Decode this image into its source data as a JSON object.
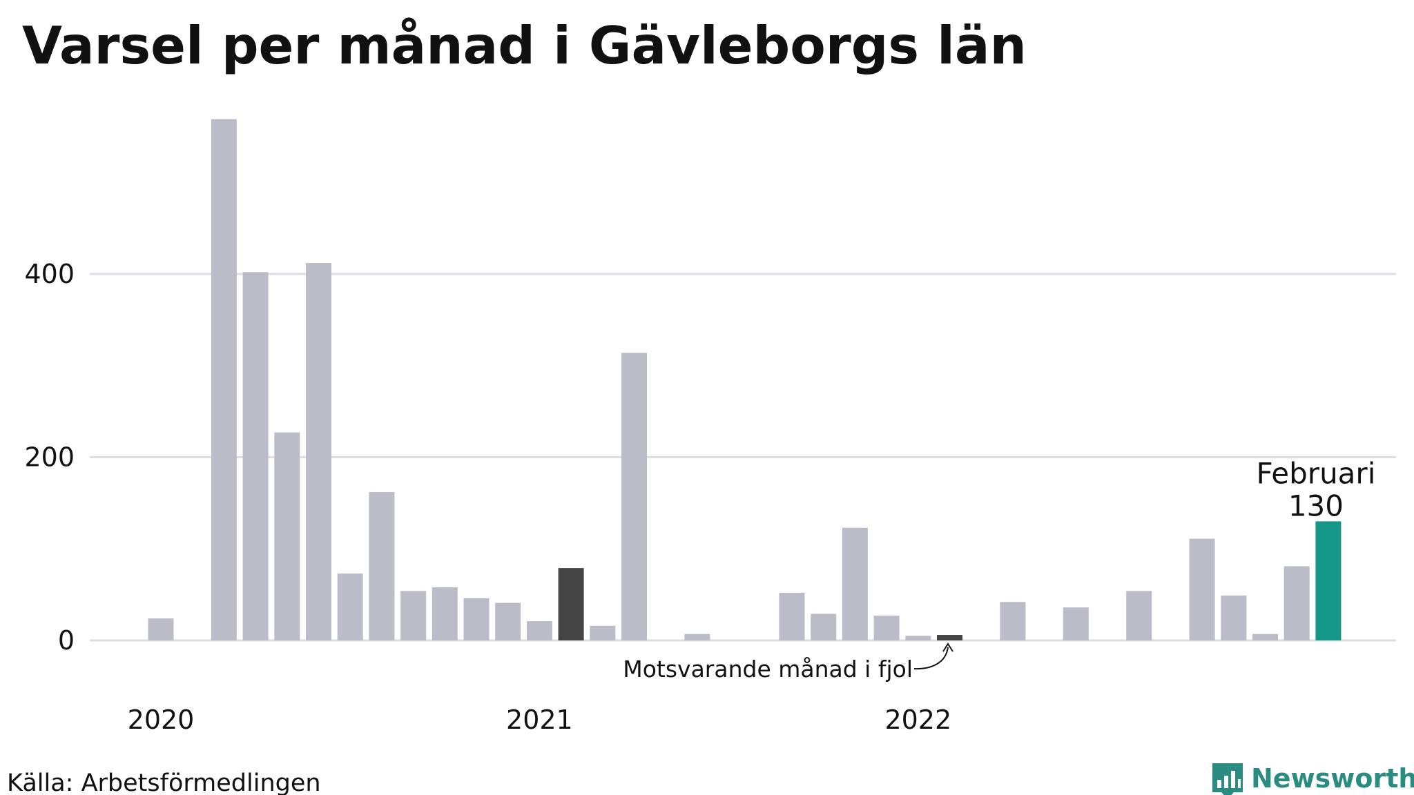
{
  "title": "Varsel per månad i Gävleborgs län",
  "source": "Källa: Arbetsförmedlingen",
  "brand": "Newsworthy",
  "chart_data": {
    "type": "bar",
    "ylim": [
      0,
      570
    ],
    "yticks": [
      0,
      200,
      400
    ],
    "grid": true,
    "categories": [
      "2020-01",
      "2020-02",
      "2020-03",
      "2020-04",
      "2020-05",
      "2020-06",
      "2020-07",
      "2020-08",
      "2020-09",
      "2020-10",
      "2020-11",
      "2020-12",
      "2021-01",
      "2021-02",
      "2021-03",
      "2021-04",
      "2021-05",
      "2021-06",
      "2021-07",
      "2021-08",
      "2021-09",
      "2021-10",
      "2021-11",
      "2021-12",
      "2022-01",
      "2022-02",
      "2022-03",
      "2022-04",
      "2022-05",
      "2022-06",
      "2022-07",
      "2022-08",
      "2022-09",
      "2022-10",
      "2022-11",
      "2022-12",
      "2023-01",
      "2023-02"
    ],
    "values": [
      24,
      0,
      569,
      402,
      227,
      412,
      73,
      162,
      54,
      58,
      46,
      41,
      21,
      79,
      16,
      314,
      0,
      7,
      0,
      0,
      52,
      29,
      123,
      27,
      5,
      6,
      0,
      42,
      0,
      36,
      0,
      54,
      0,
      111,
      49,
      7,
      81,
      130
    ],
    "xtick_labels": [
      {
        "label": "2020",
        "at": "2020-01"
      },
      {
        "label": "2021",
        "at": "2021-01"
      },
      {
        "label": "2022",
        "at": "2022-01"
      }
    ],
    "colors": {
      "default": "#bcbbc8",
      "previous_year": "#454545",
      "current": "#159688",
      "grid": "#dedde4"
    },
    "previous_year_indices": [
      13,
      25
    ],
    "current_index": 37,
    "highlight": {
      "label": "Februari",
      "value_text": "130"
    },
    "annotation": "Motsvarande månad i fjol"
  }
}
